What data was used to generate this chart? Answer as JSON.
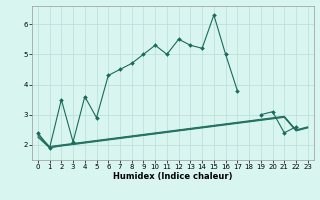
{
  "title": "",
  "xlabel": "Humidex (Indice chaleur)",
  "x": [
    0,
    1,
    2,
    3,
    4,
    5,
    6,
    7,
    8,
    9,
    10,
    11,
    12,
    13,
    14,
    15,
    16,
    17,
    18,
    19,
    20,
    21,
    22,
    23
  ],
  "line1": [
    2.4,
    1.9,
    3.5,
    2.1,
    3.6,
    2.9,
    4.3,
    4.5,
    4.7,
    5.0,
    5.3,
    5.0,
    5.5,
    5.3,
    5.2,
    6.3,
    5.0,
    3.8,
    null,
    3.0,
    3.1,
    2.4,
    2.6,
    null
  ],
  "line2": [
    2.35,
    1.95,
    2.0,
    2.05,
    2.1,
    2.15,
    2.2,
    2.25,
    2.3,
    2.35,
    2.4,
    2.45,
    2.5,
    2.55,
    2.6,
    2.65,
    2.7,
    2.75,
    2.8,
    2.85,
    2.9,
    2.95,
    2.5,
    2.6
  ],
  "line3": [
    2.3,
    1.92,
    1.98,
    2.03,
    2.08,
    2.13,
    2.18,
    2.23,
    2.28,
    2.33,
    2.38,
    2.43,
    2.48,
    2.53,
    2.58,
    2.63,
    2.68,
    2.73,
    2.78,
    2.83,
    2.88,
    2.93,
    2.48,
    2.58
  ],
  "line4": [
    2.25,
    1.9,
    1.96,
    2.01,
    2.06,
    2.11,
    2.16,
    2.21,
    2.26,
    2.31,
    2.36,
    2.41,
    2.46,
    2.51,
    2.56,
    2.61,
    2.66,
    2.71,
    2.76,
    2.81,
    2.86,
    2.91,
    2.46,
    2.56
  ],
  "line_color": "#1a6b5a",
  "bg_color": "#d8f5f0",
  "grid_color": "#b8ddd8",
  "ylim": [
    1.5,
    6.6
  ],
  "xlim": [
    -0.5,
    23.5
  ],
  "yticks": [
    2,
    3,
    4,
    5,
    6
  ],
  "xticks": [
    0,
    1,
    2,
    3,
    4,
    5,
    6,
    7,
    8,
    9,
    10,
    11,
    12,
    13,
    14,
    15,
    16,
    17,
    18,
    19,
    20,
    21,
    22,
    23
  ],
  "tick_fontsize": 5.0,
  "xlabel_fontsize": 6.0,
  "marker_size": 2.0,
  "line_width": 0.8
}
